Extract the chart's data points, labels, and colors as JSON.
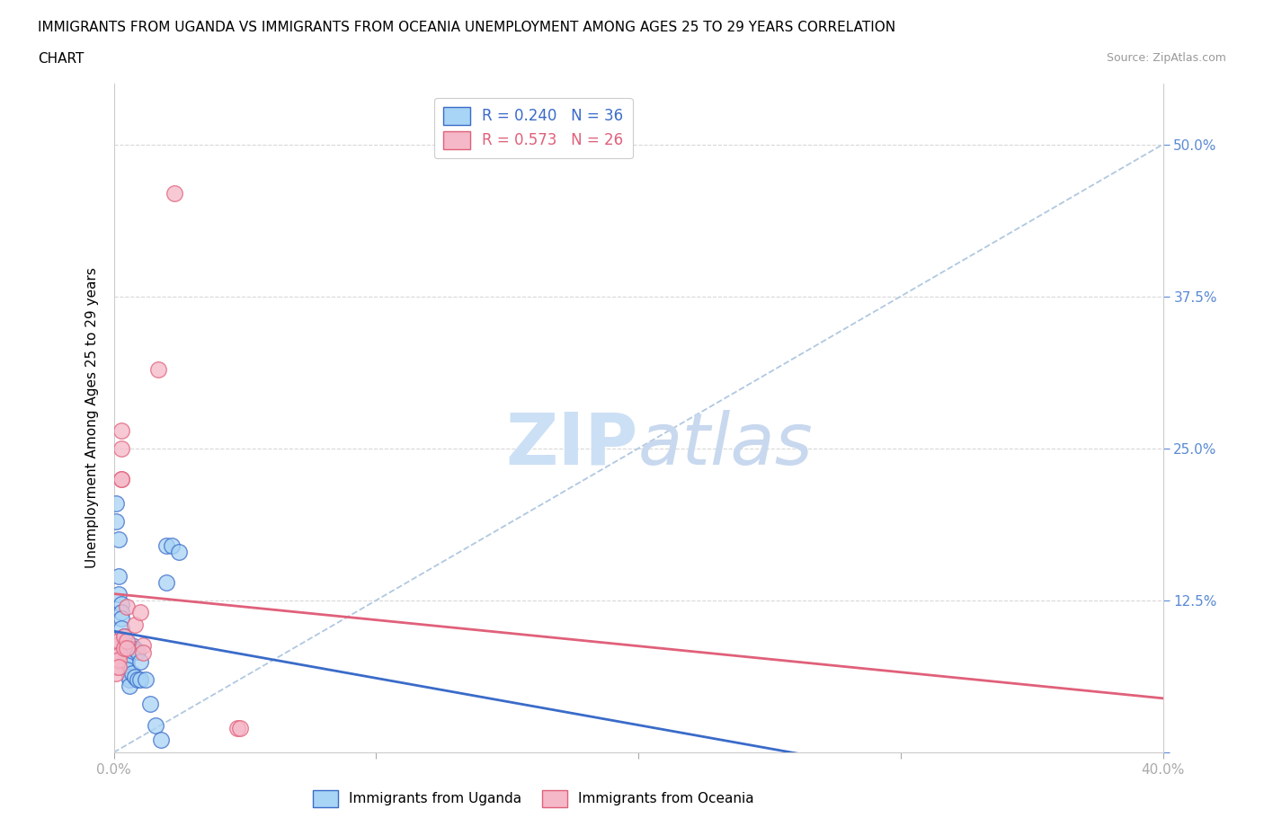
{
  "title_line1": "IMMIGRANTS FROM UGANDA VS IMMIGRANTS FROM OCEANIA UNEMPLOYMENT AMONG AGES 25 TO 29 YEARS CORRELATION",
  "title_line2": "CHART",
  "source_text": "Source: ZipAtlas.com",
  "ylabel": "Unemployment Among Ages 25 to 29 years",
  "xlim": [
    0.0,
    0.4
  ],
  "ylim": [
    0.0,
    0.55
  ],
  "xticks": [
    0.0,
    0.1,
    0.2,
    0.3,
    0.4
  ],
  "xticklabels": [
    "0.0%",
    "",
    "",
    "",
    "40.0%"
  ],
  "yticks": [
    0.0,
    0.125,
    0.25,
    0.375,
    0.5
  ],
  "yticklabels": [
    "",
    "12.5%",
    "25.0%",
    "37.5%",
    "50.0%"
  ],
  "r_uganda": 0.24,
  "n_uganda": 36,
  "r_oceania": 0.573,
  "n_oceania": 26,
  "uganda_color": "#a8d4f5",
  "oceania_color": "#f5b8c8",
  "uganda_line_color": "#3a6bc9",
  "oceania_line_color": "#e0607a",
  "uganda_scatter_x": [
    0.001,
    0.001,
    0.002,
    0.002,
    0.002,
    0.003,
    0.003,
    0.003,
    0.003,
    0.004,
    0.004,
    0.004,
    0.004,
    0.005,
    0.005,
    0.005,
    0.005,
    0.006,
    0.006,
    0.006,
    0.007,
    0.007,
    0.008,
    0.008,
    0.009,
    0.009,
    0.01,
    0.01,
    0.012,
    0.014,
    0.016,
    0.018,
    0.02,
    0.02,
    0.022,
    0.025
  ],
  "uganda_scatter_y": [
    0.205,
    0.19,
    0.175,
    0.145,
    0.13,
    0.122,
    0.115,
    0.11,
    0.102,
    0.095,
    0.09,
    0.088,
    0.082,
    0.08,
    0.076,
    0.072,
    0.068,
    0.062,
    0.06,
    0.055,
    0.088,
    0.065,
    0.085,
    0.062,
    0.083,
    0.06,
    0.075,
    0.06,
    0.06,
    0.04,
    0.022,
    0.01,
    0.14,
    0.17,
    0.17,
    0.165
  ],
  "oceania_scatter_x": [
    0.001,
    0.001,
    0.001,
    0.001,
    0.001,
    0.002,
    0.002,
    0.002,
    0.002,
    0.003,
    0.003,
    0.003,
    0.003,
    0.004,
    0.004,
    0.005,
    0.005,
    0.005,
    0.008,
    0.01,
    0.011,
    0.011,
    0.017,
    0.023,
    0.047,
    0.048
  ],
  "oceania_scatter_y": [
    0.088,
    0.078,
    0.075,
    0.07,
    0.065,
    0.092,
    0.08,
    0.076,
    0.07,
    0.265,
    0.225,
    0.25,
    0.225,
    0.095,
    0.086,
    0.092,
    0.086,
    0.12,
    0.105,
    0.115,
    0.088,
    0.082,
    0.315,
    0.46,
    0.02,
    0.02
  ],
  "watermark_zip_color": "#cce0f5",
  "watermark_atlas_color": "#c8d8ee",
  "legend_uganda": "Immigrants from Uganda",
  "legend_oceania": "Immigrants from Oceania",
  "title_fontsize": 11,
  "axis_label_fontsize": 11,
  "tick_fontsize": 11,
  "tick_color": "#5a8ad4",
  "background_color": "#FFFFFF",
  "grid_color": "#d8d8d8",
  "ref_line_color": "#b0c8e0",
  "ref_line_style": "--"
}
